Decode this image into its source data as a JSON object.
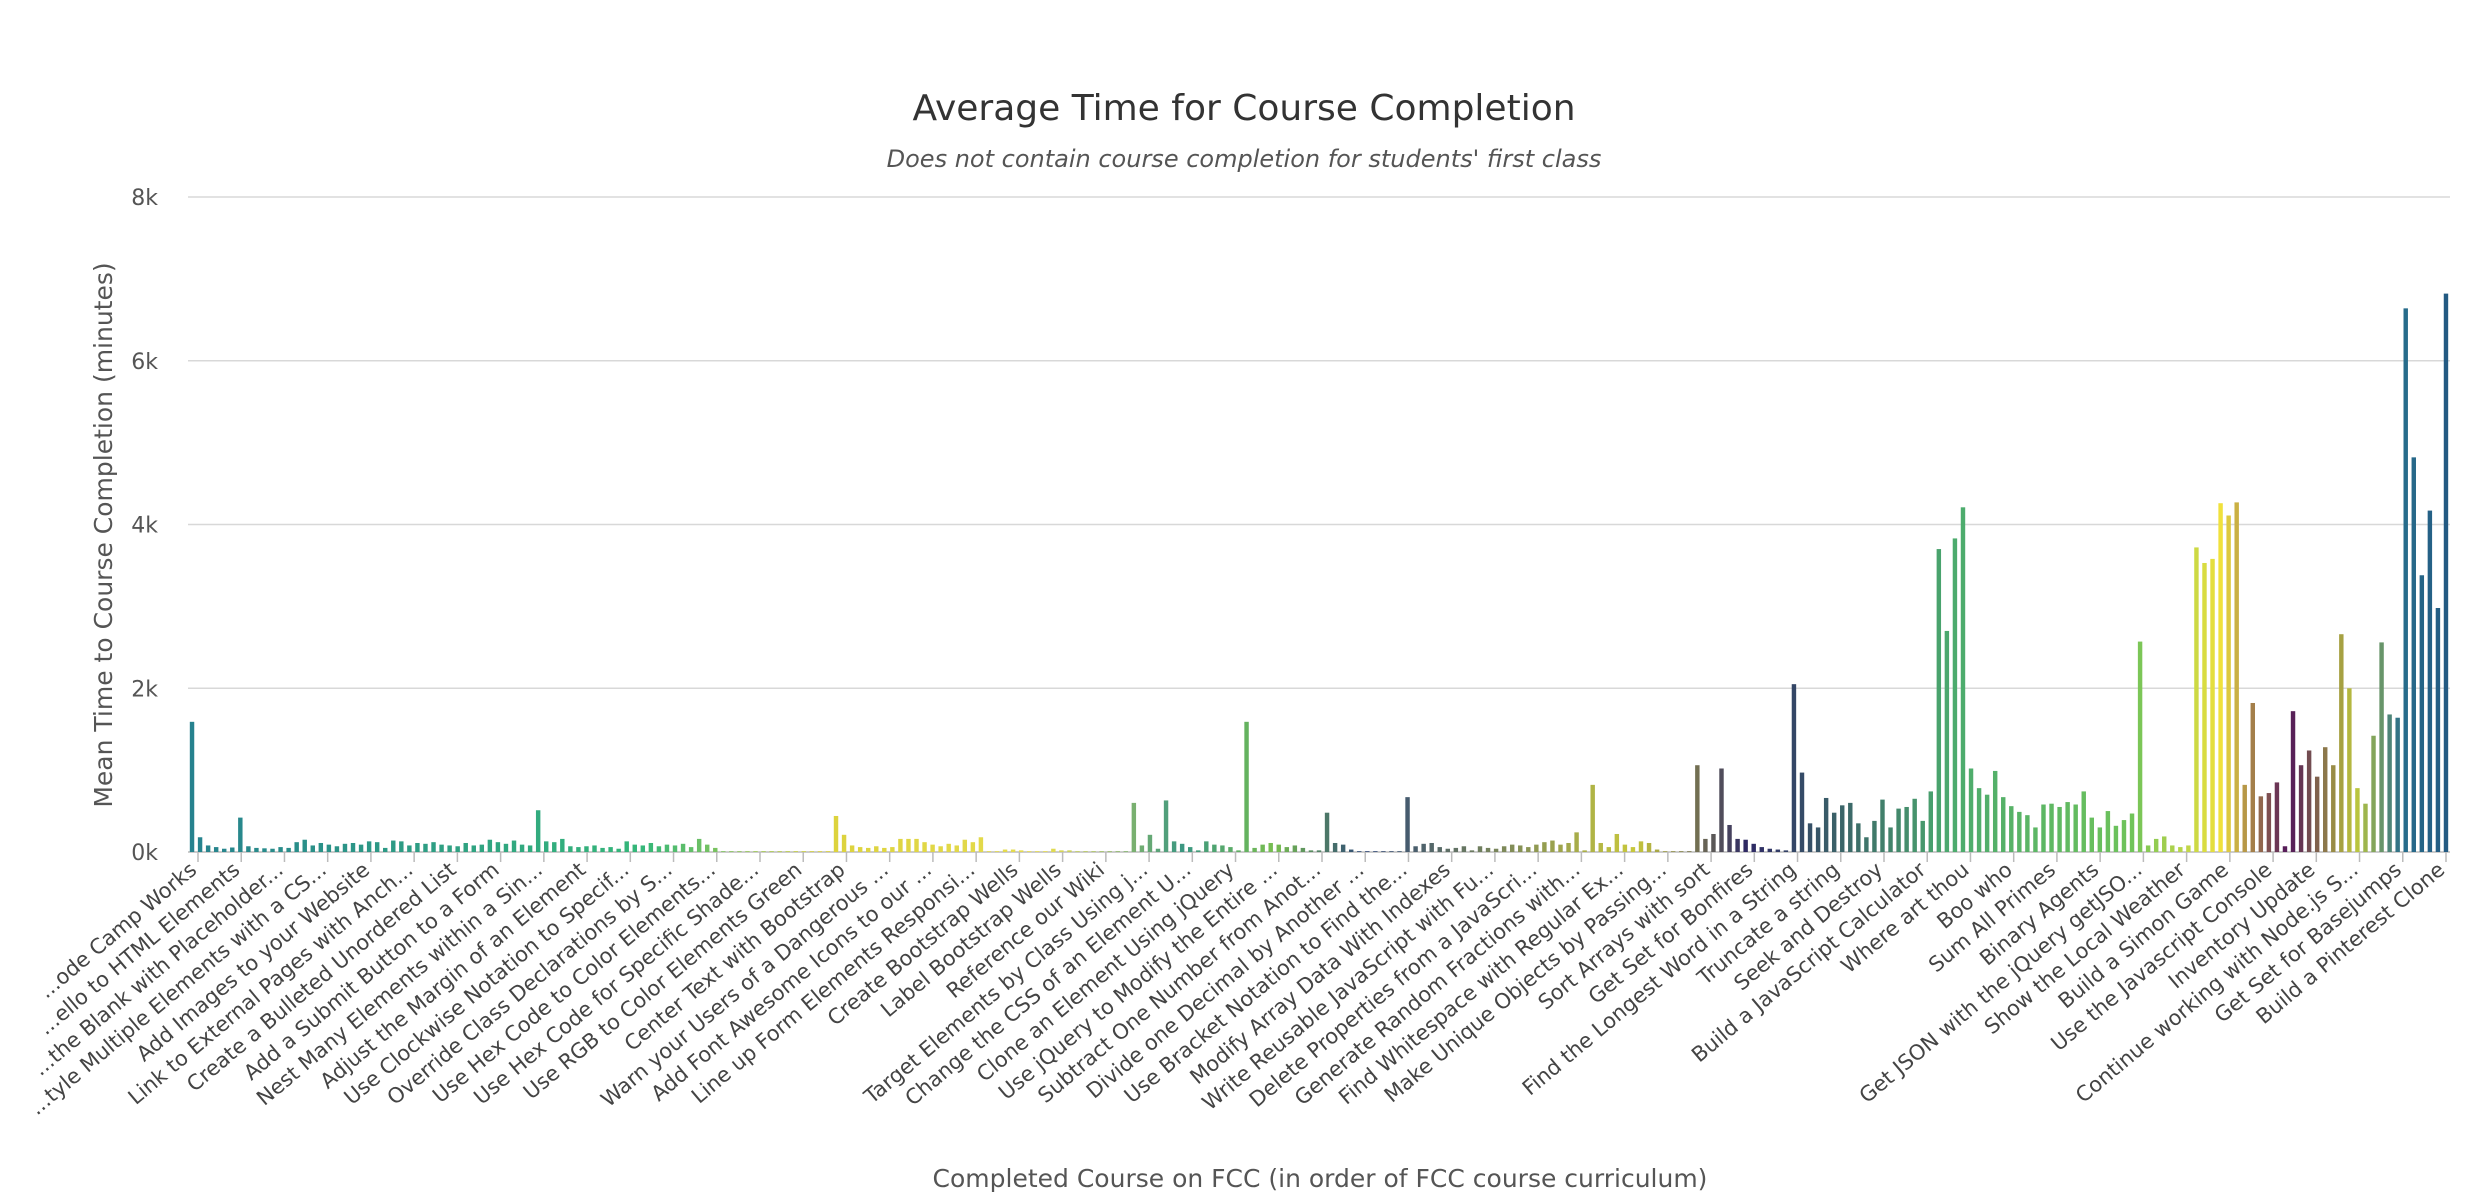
{
  "chart_data": {
    "type": "bar",
    "title": "Average Time for Course Completion",
    "subtitle": "Does not contain course completion for students' first class",
    "xlabel": "Completed Course on FCC (in order of FCC course curriculum)",
    "ylabel": "Mean Time to Course Completion (minutes)",
    "ylim": [
      0,
      8000
    ],
    "yticks": [
      0,
      2000,
      4000,
      6000,
      8000
    ],
    "ytick_labels": [
      "0k",
      "2k",
      "4k",
      "6k",
      "8k"
    ],
    "grid": true,
    "legend": "none",
    "x_tick_labels": [
      "...ode Camp Works",
      "...ello to HTML Elements",
      "...the Blank with Placeholder...",
      "...tyle Multiple Elements with a CS...",
      "Add Images to your Website",
      "Link to External Pages with Anch...",
      "Create a Bulleted Unordered List",
      "Add a Submit Button to a Form",
      "Nest Many Elements within a Sin...",
      "Adjust the Margin of an Element",
      "Use Clockwise Notation to Specif...",
      "Override Class Declarations by S...",
      "Use Hex Code to Color Elements...",
      "Use Hex Code for Specific Shade...",
      "Use RGB to Color Elements Green",
      "Center Text with Bootstrap",
      "Warn your Users of a Dangerous ...",
      "Add Font Awesome Icons to our ...",
      "Line up Form Elements Responsi...",
      "Create Bootstrap Wells",
      "Label Bootstrap Wells",
      "Reference our Wiki",
      "Target Elements by Class Using j...",
      "Change the CSS of an Element U...",
      "Clone an Element Using jQuery",
      "Use jQuery to Modify the Entire ...",
      "Subtract One Number from Anot...",
      "Divide one Decimal by Another ...",
      "Use Bracket Notation to Find the...",
      "Modify Array Data With Indexes",
      "Write Reusable JavaScript with Fu...",
      "Delete Properties from a JavaScri...",
      "Generate Random Fractions with...",
      "Find Whitespace with Regular Ex...",
      "Make Unique Objects by Passing...",
      "Sort Arrays with sort",
      "Get Set for Bonfires",
      "Find the Longest Word in a String",
      "Truncate a string",
      "Seek and Destroy",
      "Build a JavaScript Calculator",
      "Where art thou",
      "Boo who",
      "Sum All Primes",
      "Binary Agents",
      "Get JSON with the jQuery getJSO...",
      "Show the Local Weather",
      "Build a Simon Game",
      "Use the Javascript Console",
      "Inventory Update",
      "Continue working with Node.js S...",
      "Get Set for Basejumps",
      "Build a Pinterest Clone"
    ],
    "values": [
      1590,
      180,
      80,
      60,
      40,
      55,
      420,
      70,
      50,
      45,
      40,
      60,
      50,
      120,
      150,
      80,
      110,
      90,
      70,
      100,
      110,
      90,
      130,
      120,
      50,
      140,
      130,
      80,
      110,
      100,
      120,
      90,
      80,
      70,
      110,
      80,
      90,
      150,
      120,
      100,
      140,
      90,
      80,
      510,
      130,
      120,
      160,
      70,
      60,
      70,
      80,
      50,
      60,
      40,
      130,
      90,
      80,
      110,
      70,
      90,
      80,
      100,
      60,
      160,
      90,
      50,
      10,
      10,
      10,
      10,
      10,
      10,
      10,
      10,
      10,
      10,
      10,
      10,
      10,
      10,
      440,
      210,
      80,
      60,
      50,
      70,
      50,
      60,
      160,
      160,
      160,
      120,
      90,
      70,
      100,
      80,
      150,
      120,
      180,
      10,
      10,
      30,
      30,
      20,
      10,
      10,
      10,
      40,
      20,
      20,
      10,
      10,
      10,
      10,
      10,
      10,
      10,
      600,
      80,
      210,
      40,
      630,
      130,
      100,
      60,
      20,
      130,
      90,
      80,
      60,
      20,
      1590,
      50,
      90,
      110,
      90,
      60,
      80,
      50,
      20,
      20,
      480,
      110,
      90,
      30,
      10,
      10,
      10,
      10,
      10,
      10,
      670,
      70,
      100,
      110,
      60,
      40,
      50,
      70,
      20,
      70,
      50,
      40,
      70,
      90,
      80,
      60,
      90,
      120,
      140,
      90,
      110,
      240,
      20,
      820,
      110,
      60,
      220,
      90,
      60,
      130,
      110,
      30,
      10,
      10,
      10,
      10,
      1060,
      160,
      220,
      1020,
      330,
      160,
      150,
      100,
      60,
      40,
      30,
      20,
      2050,
      970,
      350,
      300,
      660,
      480,
      570,
      600,
      350,
      180,
      380,
      640,
      300,
      530,
      550,
      650,
      380,
      740,
      3700,
      2700,
      3830,
      4210,
      1020,
      780,
      700,
      990,
      670,
      560,
      490,
      450,
      300,
      580,
      590,
      550,
      610,
      580,
      740,
      420,
      300,
      500,
      320,
      390,
      470,
      2570,
      80,
      160,
      190,
      80,
      60,
      80,
      3720,
      3530,
      3580,
      4260,
      4110,
      4270,
      820,
      1820,
      680,
      720,
      850,
      70,
      1720,
      1060,
      1240,
      920,
      1280,
      1060,
      2660,
      2000,
      780,
      590,
      1420,
      2560,
      1680,
      1640,
      6640,
      4820,
      3380,
      4170,
      2980,
      6820
    ]
  }
}
